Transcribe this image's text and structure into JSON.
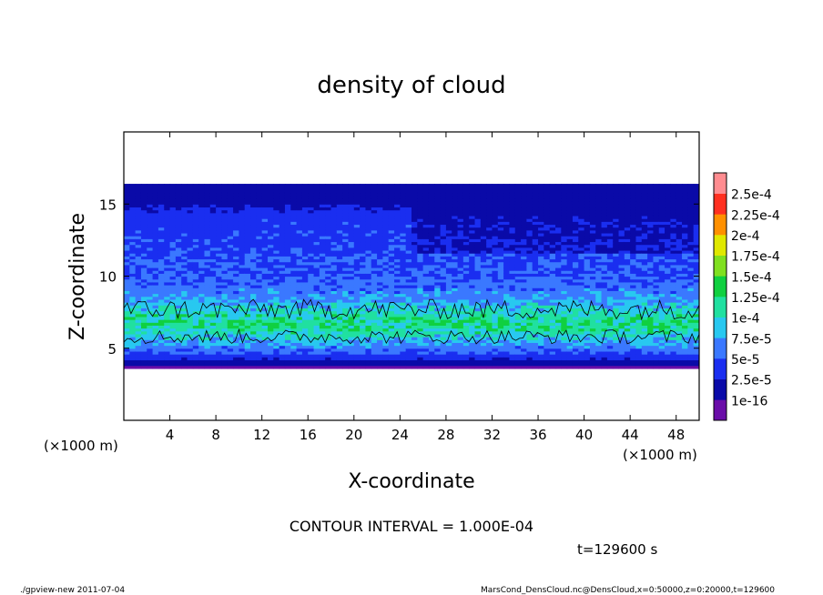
{
  "chart_data": {
    "type": "heatmap",
    "title": "density of cloud",
    "xlabel": "X-coordinate",
    "ylabel": "Z-coordinate",
    "x_unit": "(×1000 m)",
    "y_unit": "(×1000 m)",
    "xlim": [
      0,
      50
    ],
    "ylim": [
      0,
      20
    ],
    "x_ticks": [
      4,
      8,
      12,
      16,
      20,
      24,
      28,
      32,
      36,
      40,
      44,
      48
    ],
    "y_ticks": [
      5,
      10,
      15
    ],
    "colorbar": {
      "levels": [
        "1e-16",
        "2.5e-5",
        "5e-5",
        "7.5e-5",
        "1e-4",
        "1.25e-4",
        "1.5e-4",
        "1.75e-4",
        "2e-4",
        "2.25e-4",
        "2.5e-4"
      ],
      "colors": [
        "#6a0da8",
        "#0a0aa8",
        "#1a2ef0",
        "#3a78ff",
        "#28c8f0",
        "#20e0a0",
        "#10d040",
        "#80e020",
        "#e0e800",
        "#ff9000",
        "#ff3020",
        "#ff8c90"
      ]
    },
    "profile": [
      {
        "z": 3.8,
        "v": 5e-06
      },
      {
        "z": 4.3,
        "v": 3e-05
      },
      {
        "z": 5.0,
        "v": 6e-05
      },
      {
        "z": 6.0,
        "v": 0.0001
      },
      {
        "z": 6.7,
        "v": 0.00012
      },
      {
        "z": 7.5,
        "v": 0.0001
      },
      {
        "z": 8.5,
        "v": 7e-05
      },
      {
        "z": 10.0,
        "v": 5e-05
      },
      {
        "z": 12.0,
        "v": 4.5e-05
      },
      {
        "z": 14.0,
        "v": 4e-05
      },
      {
        "z": 15.0,
        "v": 2e-05
      },
      {
        "z": 15.8,
        "v": 5e-06
      },
      {
        "z": 16.3,
        "v": 1e-06
      }
    ],
    "data_extent": {
      "zmin": 3.6,
      "zmax": 16.4
    },
    "contour_level": 0.0001,
    "contour_interval_label": "CONTOUR INTERVAL = 1.000E-04",
    "time_label": "t=129600 s"
  },
  "footer": {
    "left": "./gpview-new   2011-07-04",
    "right": "MarsCond_DensCloud.nc@DensCloud,x=0:50000,z=0:20000,t=129600"
  }
}
